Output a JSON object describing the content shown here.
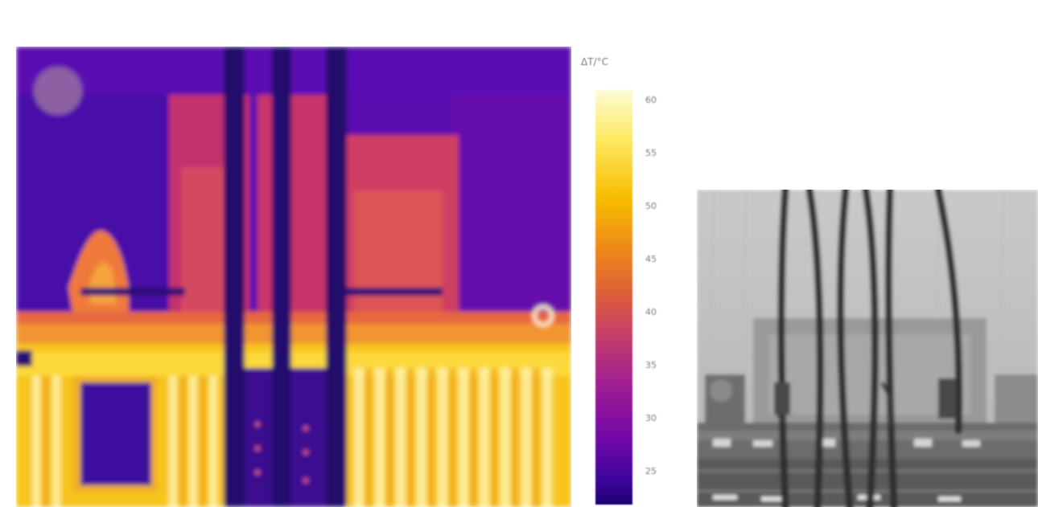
{
  "figure": {
    "thermal_image": {
      "description_icon": "thermal-camera-image",
      "colormap": "plasma"
    },
    "colorbar": {
      "title": "ΔT/°C",
      "colors": [
        "#fefcd4",
        "#fde860",
        "#f7bd00",
        "#ee8a17",
        "#dc5b3c",
        "#c23b6e",
        "#9c1c95",
        "#7108a8",
        "#3d049b",
        "#1c0174"
      ],
      "tick_labels": [
        "60",
        "55",
        "50",
        "45",
        "40",
        "35",
        "30",
        "25"
      ]
    },
    "photo": {
      "description_icon": "visible-light-photo"
    }
  }
}
